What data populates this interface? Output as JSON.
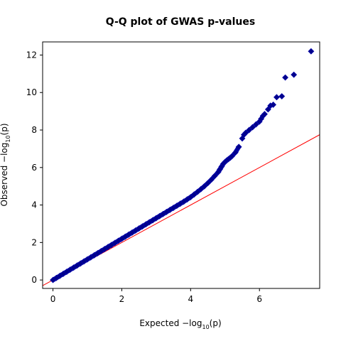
{
  "chart_data": {
    "type": "scatter",
    "title": "Q-Q plot of GWAS p-values",
    "xlabel": {
      "prefix": "Expected  −log",
      "sub": "10",
      "suffix": "(p)"
    },
    "ylabel": {
      "prefix": "Observed  −log",
      "sub": "10",
      "suffix": "(p)"
    },
    "xlim": [
      -0.3,
      7.75
    ],
    "ylim": [
      -0.45,
      12.7
    ],
    "xticks": [
      0,
      2,
      4,
      6
    ],
    "yticks": [
      0,
      2,
      4,
      6,
      8,
      10,
      12
    ],
    "grid": false,
    "reference_line": {
      "slope": 1,
      "intercept": 0,
      "color": "#ff0000"
    },
    "marker": {
      "shape": "diamond",
      "color": "#00008b"
    },
    "series": [
      {
        "x": [
          0.0,
          0.1,
          0.2,
          0.3,
          0.4,
          0.5,
          0.6,
          0.7,
          0.8,
          0.9,
          1.0,
          1.1,
          1.2,
          1.3,
          1.4,
          1.5,
          1.6,
          1.7,
          1.8,
          1.9,
          2.0,
          2.1,
          2.2,
          2.3,
          2.4,
          2.5,
          2.6,
          2.7,
          2.8,
          2.9,
          3.0,
          3.1,
          3.2,
          3.3,
          3.4,
          3.5,
          3.6,
          3.7,
          3.8,
          3.9,
          4.0,
          4.1,
          4.2,
          4.3,
          4.4,
          4.5,
          4.6,
          4.7,
          4.8,
          4.85,
          4.9,
          4.95,
          5.0,
          5.05,
          5.1,
          5.15,
          5.2,
          5.3,
          5.4,
          5.5,
          5.55,
          5.6,
          5.7,
          5.8,
          5.9,
          6.0,
          6.05,
          6.1,
          6.15,
          6.25,
          6.32,
          6.4,
          6.5,
          6.65,
          6.75,
          7.0,
          7.5
        ],
        "y": [
          0.0,
          0.11,
          0.22,
          0.33,
          0.44,
          0.55,
          0.66,
          0.77,
          0.88,
          0.99,
          1.1,
          1.21,
          1.32,
          1.43,
          1.54,
          1.65,
          1.76,
          1.87,
          1.98,
          2.09,
          2.2,
          2.31,
          2.42,
          2.53,
          2.64,
          2.75,
          2.86,
          2.97,
          3.08,
          3.19,
          3.3,
          3.41,
          3.52,
          3.63,
          3.74,
          3.85,
          3.96,
          4.07,
          4.18,
          4.3,
          4.42,
          4.56,
          4.7,
          4.85,
          5.0,
          5.17,
          5.35,
          5.55,
          5.75,
          5.9,
          6.05,
          6.2,
          6.3,
          6.38,
          6.45,
          6.52,
          6.6,
          6.8,
          7.1,
          7.55,
          7.75,
          7.85,
          8.0,
          8.15,
          8.3,
          8.45,
          8.6,
          8.75,
          8.85,
          9.1,
          9.3,
          9.35,
          9.75,
          9.8,
          10.8,
          10.95,
          12.2
        ]
      }
    ]
  }
}
